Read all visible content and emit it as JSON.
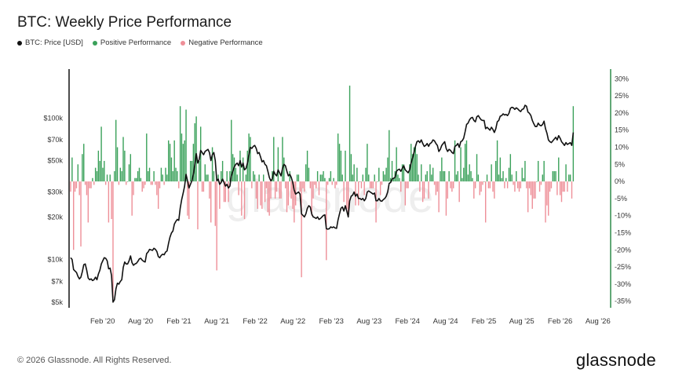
{
  "title": "BTC: Weekly Price Performance",
  "legend": [
    {
      "label": "BTC: Price [USD]",
      "color": "#111111"
    },
    {
      "label": "Positive Performance",
      "color": "#3aa15a"
    },
    {
      "label": "Negative Performance",
      "color": "#ee8f98"
    }
  ],
  "footer": "© 2026 Glassnode. All Rights Reserved.",
  "brand": "glassnode",
  "watermark": "glassnode",
  "chart_data": {
    "type": "bar+line",
    "x_ticks": [
      "Feb '20",
      "Aug '20",
      "Feb '21",
      "Aug '21",
      "Feb '22",
      "Aug '22",
      "Feb '23",
      "Aug '23",
      "Feb '24",
      "Aug '24",
      "Feb '25",
      "Aug '25",
      "Feb '26",
      "Aug '26"
    ],
    "left_axis": {
      "scale": "log",
      "ticks": [
        "$100k",
        "$70k",
        "$50k",
        "$30k",
        "$20k",
        "$10k",
        "$7k",
        "$5k"
      ],
      "tick_values": [
        100000,
        70000,
        50000,
        30000,
        20000,
        10000,
        7000,
        5000
      ],
      "range": [
        4800,
        200000
      ]
    },
    "right_axis": {
      "ticks": [
        "30%",
        "25%",
        "20%",
        "15%",
        "10%",
        "5%",
        "0%",
        "-5%",
        "-10%",
        "-15%",
        "-20%",
        "-25%",
        "-30%",
        "-35%"
      ],
      "tick_values": [
        30,
        25,
        20,
        15,
        10,
        5,
        0,
        -5,
        -10,
        -15,
        -20,
        -25,
        -30,
        -35
      ],
      "range": [
        -36,
        31
      ]
    },
    "price_series": {
      "name": "BTC: Price [USD]",
      "x_start": "2019-09-01",
      "x_step_days": 7,
      "values": [
        10300,
        10000,
        8500,
        8300,
        8100,
        7600,
        7300,
        7500,
        8200,
        9200,
        9300,
        8400,
        7400,
        7200,
        7300,
        7100,
        7200,
        7500,
        7200,
        7900,
        8400,
        9300,
        9800,
        10300,
        10200,
        9800,
        8600,
        8700,
        7700,
        5000,
        5200,
        6200,
        6800,
        6700,
        7000,
        7200,
        8800,
        9600,
        9300,
        9300,
        9800,
        10600,
        9500,
        9100,
        9300,
        9400,
        9700,
        10100,
        10200,
        9900,
        9700,
        9600,
        11000,
        11300,
        11800,
        11700,
        11600,
        12000,
        11800,
        11400,
        10500,
        10300,
        10700,
        10900,
        10800,
        11300,
        11500,
        13000,
        14400,
        15400,
        15900,
        17800,
        18600,
        19200,
        18900,
        23100,
        26500,
        29400,
        33000,
        40000,
        36000,
        32000,
        34000,
        36000,
        40000,
        47000,
        56000,
        48000,
        51000,
        59000,
        57000,
        55000,
        58000,
        59000,
        60000,
        57000,
        50000,
        55000,
        57000,
        50000,
        36000,
        37000,
        34000,
        35000,
        37000,
        35000,
        33000,
        34000,
        32000,
        33000,
        39000,
        42000,
        45000,
        47000,
        48000,
        46000,
        50000,
        45000,
        48000,
        43000,
        44000,
        48000,
        55000,
        62000,
        61000,
        63000,
        64000,
        61000,
        56000,
        57000,
        53000,
        49000,
        50000,
        47000,
        46000,
        42000,
        38000,
        36000,
        37000,
        42000,
        40000,
        39000,
        43000,
        41000,
        39000,
        44000,
        47000,
        46000,
        42000,
        39000,
        40000,
        38000,
        35000,
        31000,
        29000,
        29500,
        30000,
        29000,
        21000,
        20500,
        20000,
        21000,
        23000,
        24000,
        23500,
        21000,
        20000,
        19800,
        19500,
        20000,
        19200,
        19500,
        20000,
        20500,
        20700,
        16500,
        16400,
        16500,
        17000,
        16800,
        17000,
        16700,
        16600,
        19000,
        21000,
        23000,
        23500,
        22000,
        24000,
        22000,
        20000,
        26000,
        28000,
        28500,
        30000,
        28000,
        29000,
        27000,
        27000,
        26500,
        27000,
        26000,
        27000,
        30000,
        30500,
        30000,
        29500,
        29000,
        29500,
        26000,
        26000,
        27000,
        26000,
        25800,
        26500,
        27000,
        28000,
        30000,
        34500,
        35000,
        37000,
        37500,
        38000,
        42000,
        43000,
        43500,
        42000,
        44000,
        46000,
        43000,
        42000,
        41000,
        43000,
        48000,
        52000,
        57000,
        63000,
        68000,
        69000,
        67000,
        70000,
        66000,
        63000,
        64000,
        66000,
        63000,
        66000,
        67000,
        70000,
        69000,
        66000,
        64000,
        58000,
        60000,
        64000,
        66000,
        68000,
        61000,
        58000,
        60000,
        59000,
        57000,
        56000,
        63000,
        64000,
        66000,
        62000,
        68000,
        69000,
        72000,
        80000,
        90000,
        92000,
        97000,
        100000,
        101000,
        96000,
        94000,
        102000,
        104000,
        100000,
        97000,
        96000,
        96000,
        84000,
        86000,
        84000,
        82000,
        86000,
        83000,
        79000,
        84000,
        94000,
        96000,
        103000,
        104000,
        107000,
        105000,
        106000,
        104000,
        108000,
        117000,
        119000,
        118000,
        115000,
        118000,
        116000,
        113000,
        111000,
        115000,
        116000,
        123000,
        121000,
        110000,
        108000,
        104000,
        96000,
        91000,
        87000,
        87000,
        92000,
        89000,
        88000,
        90000,
        95000,
        84000,
        78000,
        70000,
        68000,
        67000,
        69000,
        71000,
        73000,
        70000,
        75000,
        72000,
        68000,
        66000,
        64000,
        67000,
        65000,
        66000,
        67000,
        64000,
        79000
      ]
    },
    "performance_series": {
      "name": "Weekly Performance [%]",
      "x_start": "2019-09-01",
      "x_step_days": 7,
      "values": [
        -3,
        7,
        -20,
        -3,
        -2,
        5,
        -4,
        -19,
        8,
        11,
        -1,
        -4,
        -12,
        -2,
        -2,
        1,
        -1,
        4,
        3,
        9,
        6,
        16,
        4,
        6,
        -1,
        2,
        -12,
        2,
        -11,
        -34,
        3,
        18,
        10,
        -1,
        4,
        3,
        13,
        9,
        -1,
        0,
        5,
        8,
        -10,
        -4,
        1,
        1,
        3,
        4,
        1,
        -3,
        -2,
        -1,
        14,
        3,
        4,
        -1,
        -1,
        3,
        -1,
        -4,
        -8,
        -2,
        4,
        2,
        -1,
        4,
        2,
        12,
        11,
        7,
        3,
        12,
        4,
        3,
        -2,
        22,
        14,
        11,
        12,
        21,
        -10,
        -11,
        6,
        6,
        11,
        17,
        19,
        -14,
        6,
        16,
        -3,
        -3,
        5,
        2,
        2,
        -5,
        -12,
        10,
        3,
        -13,
        -26,
        2,
        -8,
        3,
        6,
        -6,
        -6,
        3,
        -6,
        3,
        18,
        8,
        7,
        4,
        2,
        -4,
        9,
        -10,
        7,
        -11,
        2,
        9,
        14,
        13,
        -2,
        3,
        2,
        -5,
        -8,
        2,
        -7,
        -8,
        2,
        -6,
        -2,
        -9,
        -10,
        -5,
        3,
        13,
        -5,
        -3,
        10,
        -5,
        -5,
        13,
        7,
        -2,
        -9,
        -7,
        3,
        -5,
        -8,
        -12,
        -7,
        2,
        2,
        -3,
        -28,
        -2,
        -3,
        5,
        9,
        4,
        -2,
        -10,
        -5,
        -1,
        -2,
        3,
        -4,
        2,
        2,
        3,
        1,
        -23,
        -1,
        1,
        3,
        -1,
        1,
        -2,
        -1,
        14,
        11,
        9,
        2,
        -6,
        9,
        -8,
        -9,
        28,
        8,
        2,
        5,
        -7,
        4,
        -7,
        0,
        -2,
        2,
        -4,
        4,
        11,
        2,
        -2,
        -2,
        -2,
        2,
        -12,
        0,
        4,
        -4,
        -1,
        3,
        2,
        4,
        7,
        15,
        1,
        6,
        1,
        3,
        10,
        2,
        1,
        -3,
        5,
        5,
        -7,
        -2,
        -2,
        5,
        11,
        8,
        10,
        10,
        8,
        2,
        -3,
        5,
        -6,
        -5,
        2,
        3,
        -5,
        5,
        2,
        4,
        -1,
        -4,
        -3,
        -9,
        3,
        7,
        3,
        3,
        -10,
        -5,
        3,
        -2,
        -3,
        -2,
        12,
        2,
        3,
        -6,
        10,
        1,
        4,
        11,
        12,
        2,
        5,
        3,
        1,
        -5,
        -2,
        8,
        2,
        -4,
        -3,
        -1,
        0,
        -12,
        2,
        -2,
        -2,
        5,
        -3,
        -5,
        6,
        12,
        2,
        7,
        1,
        3,
        -2,
        1,
        -2,
        4,
        8,
        2,
        -1,
        -3,
        3,
        -2,
        -3,
        -2,
        4,
        1,
        6,
        -2,
        -9,
        -2,
        -4,
        -8,
        -5,
        -5,
        0,
        6,
        -3,
        -1,
        2,
        6,
        -12,
        -7,
        -10,
        -3,
        -2,
        3,
        3,
        3,
        -4,
        7,
        -4,
        -6,
        -3,
        -3,
        5,
        -3,
        2,
        2,
        -5,
        22
      ]
    }
  }
}
